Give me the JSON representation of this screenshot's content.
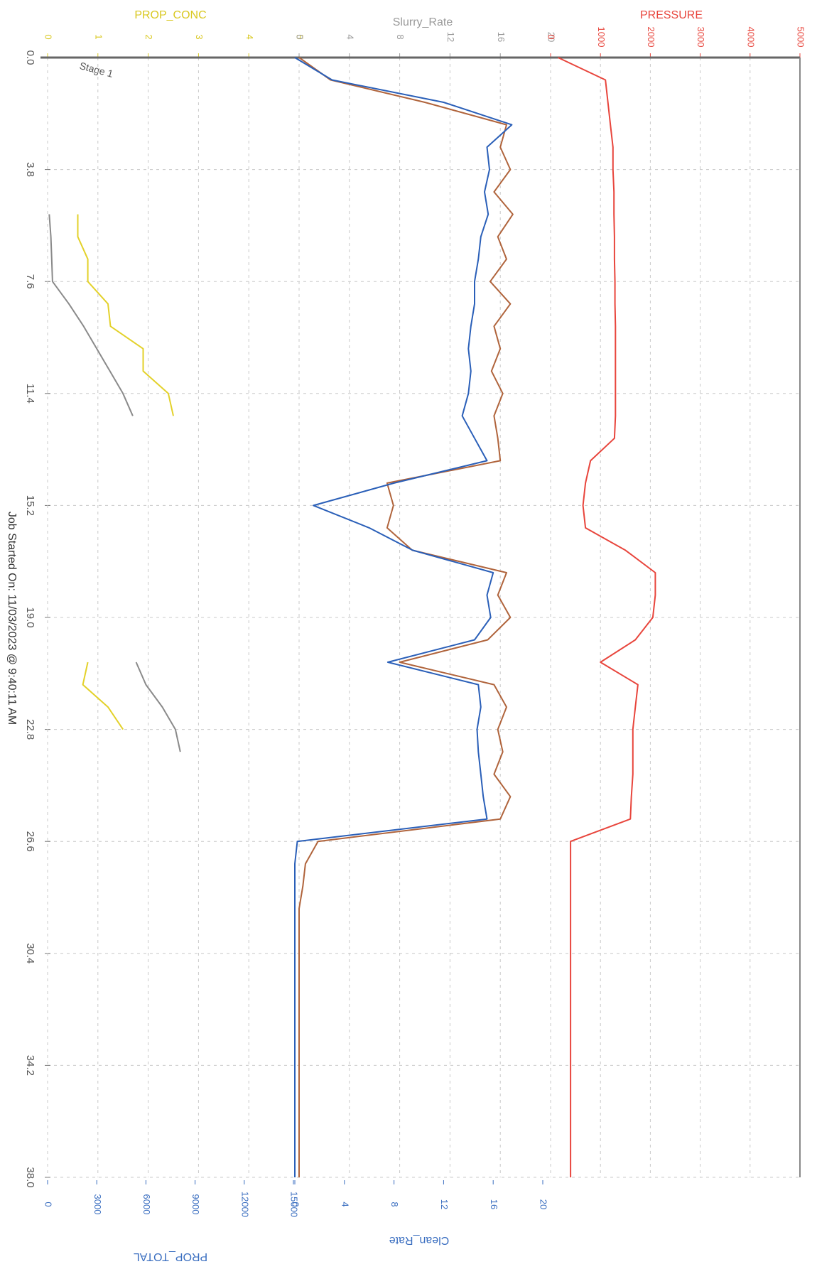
{
  "chart_data": {
    "type": "line",
    "annotations": [
      "Stage 1",
      "Job Started On: 11/03/2023 @ 9:40:11 AM"
    ],
    "xlim": [
      0,
      38
    ],
    "xticks": [
      {
        "value": 0,
        "label": "0.0"
      },
      3.8,
      7.6,
      11.4,
      15.2,
      {
        "value": 19,
        "label": "19.0"
      },
      22.8,
      26.6,
      30.4,
      34.2,
      {
        "value": 38,
        "label": "38.0"
      }
    ],
    "grid": true,
    "axes": [
      {
        "title": "PROP_CONC",
        "color": "#d9c820",
        "side": "top",
        "lim": [
          0,
          5
        ],
        "ticks": [
          0,
          1,
          2,
          3,
          4,
          5
        ]
      },
      {
        "title": "Slurry_Rate",
        "color": "#9a9a9a",
        "side": "top",
        "lim": [
          0,
          20
        ],
        "ticks": [
          0,
          4,
          8,
          12,
          16,
          20
        ]
      },
      {
        "title": "PRESSURE",
        "color": "#e8453c",
        "side": "top",
        "lim": [
          0,
          5000
        ],
        "ticks": [
          0,
          1000,
          2000,
          3000,
          4000,
          5000
        ]
      },
      {
        "title": "Clean_Rate",
        "color": "#3a6ec0",
        "side": "bottom",
        "lim": [
          0,
          20
        ],
        "ticks": [
          0,
          4,
          8,
          12,
          16,
          20
        ]
      },
      {
        "title": "PROP_TOTAL",
        "color": "#3a6ec0",
        "side": "bottom",
        "lim": [
          0,
          15000
        ],
        "ticks": [
          0,
          3000,
          6000,
          9000,
          12000,
          15000
        ]
      }
    ],
    "x": [
      0,
      0.76,
      1.52,
      2.28,
      3.04,
      3.8,
      4.56,
      5.32,
      6.08,
      6.84,
      7.6,
      8.36,
      9.12,
      9.88,
      10.64,
      11.4,
      12.16,
      12.92,
      13.68,
      14.44,
      15.2,
      15.96,
      16.72,
      17.48,
      18.24,
      19,
      19.76,
      20.52,
      21.28,
      22.04,
      22.8,
      23.56,
      24.32,
      25.08,
      25.84,
      26.6,
      27.36,
      28.12,
      28.88,
      29.64,
      30.4,
      31.16,
      31.92,
      32.68,
      33.44,
      34.2,
      34.96,
      35.72,
      36.48,
      37.24,
      38
    ],
    "series": [
      {
        "name": "PROP_TOTAL",
        "axis": 4,
        "color": "#8a8a8a",
        "values": [
          null,
          null,
          null,
          null,
          null,
          null,
          null,
          100,
          200,
          250,
          300,
          1300,
          2200,
          3000,
          3800,
          4600,
          5200,
          null,
          null,
          null,
          null,
          null,
          null,
          null,
          null,
          null,
          null,
          5400,
          6000,
          7000,
          7800,
          8100,
          null,
          null,
          null,
          null,
          null,
          null,
          null,
          null,
          null,
          null,
          null,
          null,
          null,
          null,
          null,
          null,
          null,
          null,
          null
        ]
      },
      {
        "name": "PROP_CONC",
        "axis": 0,
        "color": "#e3d12a",
        "values": [
          null,
          null,
          null,
          null,
          null,
          null,
          null,
          0.6,
          0.6,
          0.8,
          0.8,
          1.2,
          1.25,
          1.9,
          1.9,
          2.4,
          2.5,
          null,
          null,
          null,
          null,
          null,
          null,
          null,
          null,
          null,
          null,
          0.8,
          0.7,
          1.2,
          1.5,
          null,
          null,
          null,
          null,
          null,
          null,
          null,
          null,
          null,
          null,
          null,
          null,
          null,
          null,
          null,
          null,
          null,
          null,
          null,
          null
        ]
      },
      {
        "name": "Slurry_Rate",
        "axis": 1,
        "color": "#b0643c",
        "values": [
          0,
          2.5,
          10,
          16.5,
          16,
          16.8,
          15.5,
          17,
          15.8,
          16.5,
          15.2,
          16.8,
          15.5,
          16,
          15.3,
          16.2,
          15.5,
          15.8,
          16,
          7,
          7.5,
          7,
          9,
          16.5,
          15.8,
          16.8,
          15,
          8,
          15.5,
          16.5,
          15.8,
          16.2,
          15.5,
          16.8,
          16,
          1.5,
          0.5,
          0.3,
          0,
          0,
          0,
          0,
          0,
          0,
          0,
          0,
          0,
          0,
          0,
          0,
          0
        ]
      },
      {
        "name": "Clean_Rate",
        "axis": 3,
        "color": "#2a5fb8",
        "values": [
          0,
          3,
          12,
          17.5,
          15.5,
          15.7,
          15.3,
          15.6,
          15,
          14.8,
          14.5,
          14.5,
          14.2,
          14,
          14.2,
          14,
          13.5,
          14.5,
          15.5,
          8,
          1.5,
          6,
          9.5,
          16,
          15.5,
          15.8,
          14.5,
          7.5,
          14.8,
          15,
          14.7,
          14.8,
          15,
          15.2,
          15.5,
          0.2,
          0,
          0,
          0,
          0,
          0,
          0,
          0,
          0,
          0,
          0,
          0,
          0,
          0,
          0,
          0
        ]
      },
      {
        "name": "PRESSURE",
        "axis": 2,
        "color": "#e8453c",
        "values": [
          150,
          1100,
          1150,
          1200,
          1250,
          1250,
          1270,
          1270,
          1280,
          1280,
          1290,
          1290,
          1300,
          1300,
          1300,
          1300,
          1300,
          1280,
          800,
          700,
          650,
          700,
          1500,
          2100,
          2100,
          2050,
          1700,
          1000,
          1750,
          1700,
          1650,
          1650,
          1650,
          1620,
          1600,
          400,
          400,
          400,
          400,
          400,
          400,
          400,
          400,
          400,
          400,
          400,
          400,
          400,
          400,
          400,
          400
        ]
      }
    ]
  }
}
